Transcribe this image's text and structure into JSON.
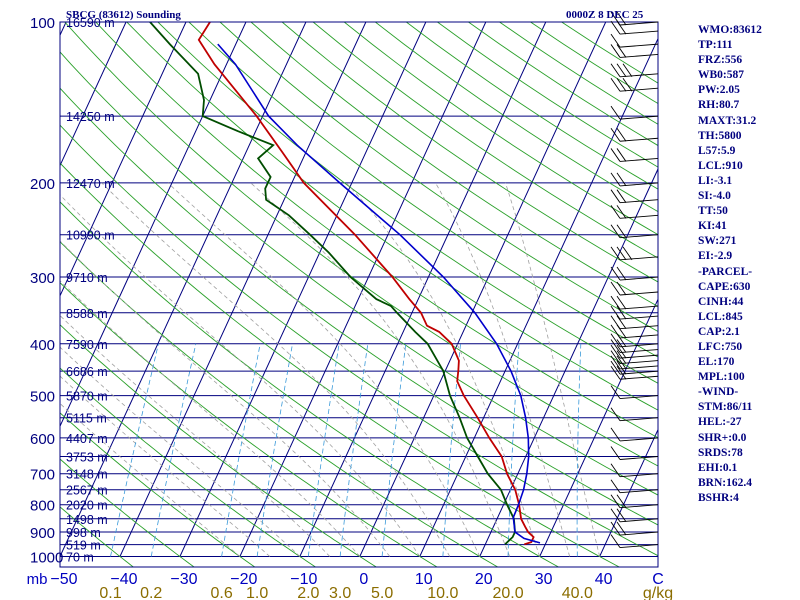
{
  "header": {
    "title": "SBCG (83612) Sounding",
    "time": "0000Z  8 DEC 25"
  },
  "colors": {
    "frame": "#00007f",
    "isobar": "#00007f",
    "isotherm": "#00007f",
    "dry_adiabat": "#2aa02a",
    "moist_adiabat": "#a0a0a0",
    "mixing_ratio": "#3a9ad9",
    "temperature": "#c00000",
    "dewpoint": "#004d00",
    "parcel": "#0000cc",
    "wind": "#000000",
    "xlabel": "#0000c0",
    "mixlabel": "#8b6d00"
  },
  "stats": [
    "WMO:83612",
    "TP:111",
    "FRZ:556",
    "WB0:587",
    "PW:2.05",
    "RH:80.7",
    "MAXT:31.2",
    "TH:5800",
    "L57:5.9",
    "LCL:910",
    "LI:-3.1",
    "SI:-4.0",
    "TT:50",
    "KI:41",
    "SW:271",
    "EI:-2.9",
    "-PARCEL-",
    "CAPE:630",
    "CINH:44",
    "LCL:845",
    "CAP:2.1",
    "LFC:750",
    "EL:170",
    "MPL:100",
    "-WIND-",
    "STM:86/11",
    "HEL:-27",
    "SHR+:0.0",
    "SRDS:78",
    "EHI:0.1",
    "BRN:162.4",
    "BSHR:4"
  ],
  "chart_data": {
    "type": "skew-t log-p sounding",
    "title": "SBCG (83612) Sounding",
    "valid_time": "0000Z  8 DEC 25",
    "y_axis": {
      "label": "mb",
      "scale": "log-pressure",
      "range_hPa": [
        1000,
        100
      ],
      "ticks": [
        100,
        200,
        300,
        400,
        500,
        600,
        700,
        800,
        900,
        1000
      ]
    },
    "x_axis": {
      "label": "C",
      "range_C": [
        -50,
        50
      ],
      "ticks": [
        -50,
        -40,
        -30,
        -20,
        -10,
        0,
        10,
        20,
        30,
        40
      ]
    },
    "mixing_ratio_axis": {
      "unit": "g/kg",
      "ticks": [
        0.1,
        0.2,
        0.6,
        1.0,
        2.0,
        3.0,
        5.0,
        10.0,
        20.0,
        40.0
      ],
      "tick_labels": [
        "0.1",
        "0.2",
        "0.6",
        "1.0",
        "2.0",
        "3.0",
        "5.0",
        "10.0",
        "20.0",
        "40.0"
      ]
    },
    "height_labels": [
      {
        "p": 100,
        "label": "16590 m"
      },
      {
        "p": 150,
        "label": "14250 m"
      },
      {
        "p": 200,
        "label": "12470 m"
      },
      {
        "p": 250,
        "label": "10990 m"
      },
      {
        "p": 300,
        "label": "9710 m"
      },
      {
        "p": 350,
        "label": "8588 m"
      },
      {
        "p": 400,
        "label": "7590 m"
      },
      {
        "p": 450,
        "label": "6686 m"
      },
      {
        "p": 500,
        "label": "5870 m"
      },
      {
        "p": 550,
        "label": "5115 m"
      },
      {
        "p": 600,
        "label": "4407 m"
      },
      {
        "p": 650,
        "label": "3753 m"
      },
      {
        "p": 700,
        "label": "3148 m"
      },
      {
        "p": 750,
        "label": "2567 m"
      },
      {
        "p": 800,
        "label": "2020 m"
      },
      {
        "p": 850,
        "label": "1498 m"
      },
      {
        "p": 900,
        "label": "998 m"
      },
      {
        "p": 950,
        "label": "519 m"
      },
      {
        "p": 1000,
        "label": "70 m"
      }
    ],
    "series": [
      {
        "name": "Temperature (C)",
        "points": [
          [
            949,
            26.5
          ],
          [
            940,
            27.5
          ],
          [
            920,
            27.5
          ],
          [
            900,
            26.2
          ],
          [
            880,
            25.3
          ],
          [
            850,
            24.0
          ],
          [
            800,
            22.6
          ],
          [
            750,
            20.8
          ],
          [
            700,
            18.2
          ],
          [
            650,
            16.0
          ],
          [
            600,
            12.5
          ],
          [
            550,
            9.0
          ],
          [
            500,
            5.0
          ],
          [
            470,
            2.8
          ],
          [
            450,
            2.2
          ],
          [
            430,
            1.5
          ],
          [
            400,
            -1.0
          ],
          [
            380,
            -4.0
          ],
          [
            370,
            -6.5
          ],
          [
            350,
            -8.5
          ],
          [
            330,
            -11.5
          ],
          [
            300,
            -16.0
          ],
          [
            250,
            -25.5
          ],
          [
            200,
            -38.0
          ],
          [
            175,
            -44.0
          ],
          [
            150,
            -51.0
          ],
          [
            120,
            -62.0
          ],
          [
            108,
            -66.5
          ],
          [
            100,
            -66.0
          ]
        ]
      },
      {
        "name": "Dewpoint (C)",
        "points": [
          [
            949,
            23.3
          ],
          [
            920,
            24.0
          ],
          [
            900,
            24.0
          ],
          [
            850,
            22.8
          ],
          [
            800,
            20.6
          ],
          [
            750,
            18.4
          ],
          [
            700,
            15.0
          ],
          [
            650,
            12.0
          ],
          [
            600,
            8.8
          ],
          [
            550,
            6.0
          ],
          [
            500,
            2.7
          ],
          [
            450,
            -0.3
          ],
          [
            400,
            -5.0
          ],
          [
            380,
            -8.0
          ],
          [
            350,
            -12.5
          ],
          [
            340,
            -14.0
          ],
          [
            330,
            -17.0
          ],
          [
            300,
            -23.0
          ],
          [
            270,
            -28.5
          ],
          [
            250,
            -33.0
          ],
          [
            230,
            -38.0
          ],
          [
            215,
            -43.0
          ],
          [
            205,
            -44.0
          ],
          [
            195,
            -44.0
          ],
          [
            180,
            -47.5
          ],
          [
            170,
            -46.0
          ],
          [
            160,
            -53.0
          ],
          [
            150,
            -60.0
          ],
          [
            140,
            -61.0
          ],
          [
            125,
            -64.0
          ],
          [
            110,
            -71.0
          ],
          [
            100,
            -76.0
          ]
        ]
      },
      {
        "name": "Parcel (C)",
        "points": [
          [
            943,
            29.0
          ],
          [
            925,
            26.0
          ],
          [
            900,
            24.0
          ],
          [
            845,
            22.6
          ],
          [
            800,
            22.5
          ],
          [
            750,
            22.2
          ],
          [
            700,
            21.5
          ],
          [
            650,
            20.5
          ],
          [
            600,
            19.0
          ],
          [
            550,
            17.0
          ],
          [
            500,
            14.5
          ],
          [
            450,
            11.0
          ],
          [
            400,
            6.5
          ],
          [
            350,
            0.5
          ],
          [
            300,
            -7.5
          ],
          [
            250,
            -18.0
          ],
          [
            200,
            -32.0
          ],
          [
            170,
            -42.0
          ],
          [
            150,
            -49.0
          ],
          [
            120,
            -58.5
          ],
          [
            110,
            -63.0
          ]
        ]
      }
    ],
    "wind_barbs": [
      {
        "p": 100,
        "n": 2
      },
      {
        "p": 104,
        "n": 2
      },
      {
        "p": 110,
        "n": 1
      },
      {
        "p": 115,
        "n": 2
      },
      {
        "p": 125,
        "n": 3
      },
      {
        "p": 133,
        "n": 3
      },
      {
        "p": 150,
        "n": 1
      },
      {
        "p": 165,
        "n": 2
      },
      {
        "p": 180,
        "n": 2
      },
      {
        "p": 200,
        "n": 2
      },
      {
        "p": 215,
        "n": 2
      },
      {
        "p": 230,
        "n": 2
      },
      {
        "p": 250,
        "n": 2
      },
      {
        "p": 275,
        "n": 3
      },
      {
        "p": 300,
        "n": 2
      },
      {
        "p": 320,
        "n": 2
      },
      {
        "p": 340,
        "n": 2
      },
      {
        "p": 355,
        "n": 2
      },
      {
        "p": 370,
        "n": 2
      },
      {
        "p": 385,
        "n": 2
      },
      {
        "p": 400,
        "n": 2
      },
      {
        "p": 410,
        "n": 2
      },
      {
        "p": 420,
        "n": 2
      },
      {
        "p": 430,
        "n": 2
      },
      {
        "p": 440,
        "n": 2
      },
      {
        "p": 450,
        "n": 2
      },
      {
        "p": 460,
        "n": 2
      },
      {
        "p": 500,
        "n": 1
      },
      {
        "p": 550,
        "n": 1
      },
      {
        "p": 600,
        "n": 1
      },
      {
        "p": 650,
        "n": 1
      },
      {
        "p": 700,
        "n": 1
      },
      {
        "p": 750,
        "n": 1
      },
      {
        "p": 800,
        "n": 2
      },
      {
        "p": 850,
        "n": 2
      },
      {
        "p": 900,
        "n": 2
      },
      {
        "p": 950,
        "n": 1
      }
    ]
  }
}
